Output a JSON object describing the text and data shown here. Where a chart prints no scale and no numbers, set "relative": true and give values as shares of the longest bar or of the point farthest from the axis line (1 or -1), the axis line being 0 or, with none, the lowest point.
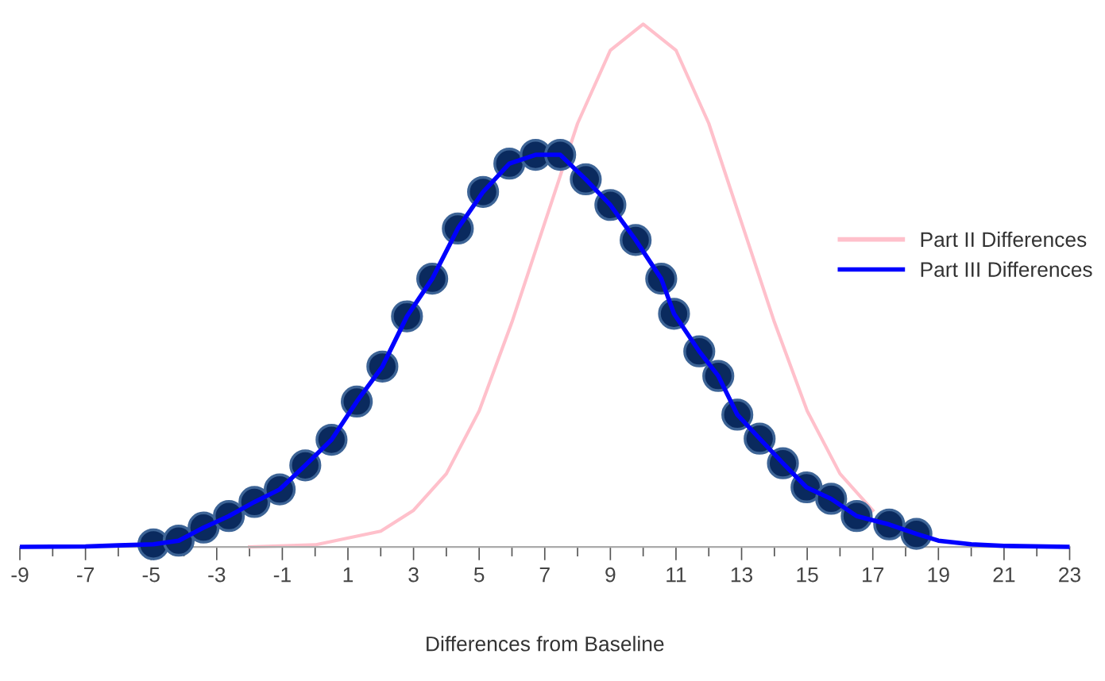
{
  "chart_data": {
    "type": "line",
    "relative": true,
    "xlabel": "Differences from Baseline",
    "xlim": [
      -9,
      23
    ],
    "xticks": [
      -9,
      {
        "value": -8,
        "label": null
      },
      -7,
      {
        "value": -6,
        "label": null
      },
      -5,
      {
        "value": -4,
        "label": null
      },
      -3,
      {
        "value": -2,
        "label": null
      },
      -1,
      {
        "value": 0,
        "label": null
      },
      1,
      {
        "value": 2,
        "label": null
      },
      3,
      {
        "value": 4,
        "label": null
      },
      5,
      {
        "value": 6,
        "label": null
      },
      7,
      {
        "value": 8,
        "label": null
      },
      9,
      {
        "value": 10,
        "label": null
      },
      11,
      {
        "value": 12,
        "label": null
      },
      13,
      {
        "value": 14,
        "label": null
      },
      15,
      {
        "value": 16,
        "label": null
      },
      17,
      {
        "value": 18,
        "label": null
      },
      19,
      {
        "value": 20,
        "label": null
      },
      21,
      {
        "value": 22,
        "label": null
      },
      23
    ],
    "legend": "right",
    "grid": false,
    "series": [
      {
        "name": "Part II Differences",
        "color": "#ffc0cb",
        "x": [
          -2,
          0,
          2,
          3,
          4,
          5,
          6,
          7,
          8,
          9,
          10,
          11,
          12,
          13,
          14,
          15,
          16,
          17
        ],
        "values": [
          0,
          0.004,
          0.03,
          0.07,
          0.14,
          0.26,
          0.43,
          0.62,
          0.81,
          0.95,
          1.0,
          0.95,
          0.81,
          0.62,
          0.43,
          0.26,
          0.14,
          0.07
        ]
      },
      {
        "name": "Part III Differences",
        "color": "#0000ff",
        "x": [
          -9,
          -7,
          -6,
          -4.93,
          -4.16,
          -3.4,
          -2.63,
          -1.85,
          -1.08,
          -0.3,
          0.5,
          1.27,
          2.05,
          2.8,
          3.57,
          4.35,
          5.12,
          5.92,
          6.72,
          7.47,
          8.25,
          9.0,
          9.77,
          10.55,
          10.94,
          11.71,
          12.29,
          12.87,
          13.55,
          14.26,
          14.98,
          15.73,
          16.51,
          17.5,
          18.33,
          19,
          20,
          21,
          23
        ],
        "values": [
          0,
          0.001,
          0.003,
          0.005,
          0.012,
          0.037,
          0.059,
          0.086,
          0.11,
          0.156,
          0.205,
          0.278,
          0.345,
          0.441,
          0.513,
          0.609,
          0.679,
          0.733,
          0.75,
          0.75,
          0.703,
          0.654,
          0.587,
          0.513,
          0.446,
          0.374,
          0.327,
          0.253,
          0.207,
          0.16,
          0.114,
          0.092,
          0.059,
          0.043,
          0.025,
          0.012,
          0.005,
          0.002,
          0
        ]
      },
      {
        "type": "scatter",
        "marker": "circle",
        "color": "#0a2a5e",
        "x": [
          -4.93,
          -4.16,
          -3.4,
          -2.63,
          -1.85,
          -1.08,
          -0.3,
          0.5,
          1.27,
          2.05,
          2.8,
          3.57,
          4.35,
          5.12,
          5.92,
          6.72,
          7.47,
          8.25,
          9.0,
          9.77,
          10.55,
          10.94,
          11.71,
          12.29,
          12.87,
          13.55,
          14.26,
          14.98,
          15.73,
          16.51,
          17.5,
          18.33
        ],
        "values": [
          0.005,
          0.012,
          0.037,
          0.059,
          0.086,
          0.11,
          0.156,
          0.205,
          0.278,
          0.345,
          0.441,
          0.513,
          0.609,
          0.679,
          0.733,
          0.75,
          0.75,
          0.703,
          0.654,
          0.587,
          0.513,
          0.446,
          0.374,
          0.327,
          0.253,
          0.207,
          0.16,
          0.114,
          0.092,
          0.059,
          0.043,
          0.025
        ]
      }
    ]
  }
}
